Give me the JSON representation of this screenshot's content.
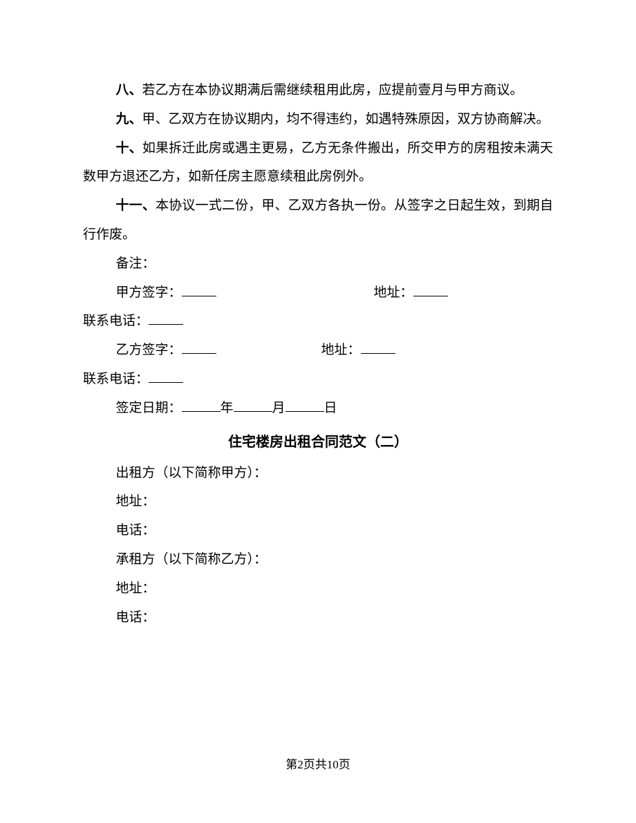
{
  "clauses": {
    "c8": {
      "prefix": "八、",
      "text": "若乙方在本协议期满后需继续租用此房，应提前壹月与甲方商议。"
    },
    "c9": {
      "prefix": "九、",
      "text": "甲、乙双方在协议期内，均不得违约，如遇特殊原因，双方协商解决。"
    },
    "c10": {
      "prefix": "十、",
      "text": "如果拆迁此房或遇主更易，乙方无条件搬出，所交甲方的房租按未满天数甲方退还乙方，如新任房主愿意续租此房例外。"
    },
    "c11": {
      "prefix": "十一、",
      "text": "本协议一式二份，甲、乙双方各执一份。从签字之日起生效，到期自行作废。"
    }
  },
  "labels": {
    "remark": "备注：",
    "partyA_sign": "甲方签字：",
    "partyB_sign": "乙方签字：",
    "address": "地址：",
    "phone": "联系电话：",
    "sign_date": "签定日期：",
    "year": "年",
    "month": "月",
    "day": "日"
  },
  "section2": {
    "title": "住宅楼房出租合同范文（二）",
    "lessor": "出租方（以下简称甲方）：",
    "lessee": "承租方（以下简称乙方）：",
    "address": "地址：",
    "phone": "电话："
  },
  "footer": "第2页共10页"
}
